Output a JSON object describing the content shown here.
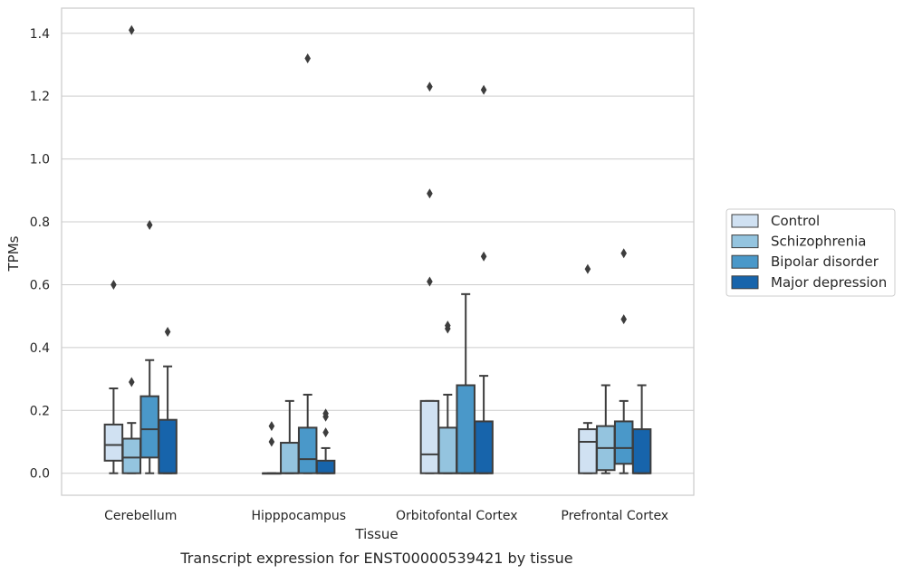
{
  "chart_data": {
    "type": "box",
    "caption": "Transcript expression for ENST00000539421 by tissue",
    "xlabel": "Tissue",
    "ylabel": "TPMs",
    "ylim": [
      -0.07,
      1.48
    ],
    "yticks": [
      0.0,
      0.2,
      0.4,
      0.6,
      0.8,
      1.0,
      1.2,
      1.4
    ],
    "ytick_labels": [
      "0.0",
      "0.2",
      "0.4",
      "0.6",
      "0.8",
      "1.0",
      "1.2",
      "1.4"
    ],
    "grid": "horizontal",
    "legend_position": "right",
    "categories": [
      "Cerebellum",
      "Hipppocampus",
      "Orbitofontal Cortex",
      "Prefrontal Cortex"
    ],
    "series": [
      {
        "name": "Control",
        "color": "#d0e1f2",
        "boxes": [
          {
            "low": 0.0,
            "q1": 0.04,
            "median": 0.09,
            "q3": 0.155,
            "high": 0.27,
            "outliers": [
              0.6
            ]
          },
          {
            "low": 0.0,
            "q1": 0.0,
            "median": 0.0,
            "q3": 0.0,
            "high": 0.0,
            "outliers": [
              0.1,
              0.15
            ]
          },
          {
            "low": 0.0,
            "q1": 0.0,
            "median": 0.06,
            "q3": 0.23,
            "high": 0.23,
            "outliers": [
              0.61,
              0.89,
              1.23
            ]
          },
          {
            "low": 0.0,
            "q1": 0.0,
            "median": 0.1,
            "q3": 0.14,
            "high": 0.16,
            "outliers": [
              0.65
            ]
          }
        ]
      },
      {
        "name": "Schizophrenia",
        "color": "#94c4df",
        "boxes": [
          {
            "low": 0.0,
            "q1": 0.0,
            "median": 0.05,
            "q3": 0.11,
            "high": 0.16,
            "outliers": [
              0.29,
              1.41
            ]
          },
          {
            "low": 0.0,
            "q1": 0.0,
            "median": 0.0,
            "q3": 0.097,
            "high": 0.23,
            "outliers": []
          },
          {
            "low": 0.0,
            "q1": 0.0,
            "median": 0.0,
            "q3": 0.145,
            "high": 0.25,
            "outliers": [
              0.46,
              0.47
            ]
          },
          {
            "low": 0.0,
            "q1": 0.01,
            "median": 0.08,
            "q3": 0.15,
            "high": 0.28,
            "outliers": []
          }
        ]
      },
      {
        "name": "Bipolar disorder",
        "color": "#4a98c9",
        "boxes": [
          {
            "low": 0.0,
            "q1": 0.05,
            "median": 0.14,
            "q3": 0.245,
            "high": 0.36,
            "outliers": [
              0.79
            ]
          },
          {
            "low": 0.0,
            "q1": 0.0,
            "median": 0.045,
            "q3": 0.145,
            "high": 0.25,
            "outliers": [
              1.32
            ]
          },
          {
            "low": 0.0,
            "q1": 0.0,
            "median": 0.0,
            "q3": 0.28,
            "high": 0.57,
            "outliers": []
          },
          {
            "low": 0.0,
            "q1": 0.03,
            "median": 0.08,
            "q3": 0.165,
            "high": 0.23,
            "outliers": [
              0.49,
              0.7
            ]
          }
        ]
      },
      {
        "name": "Major depression",
        "color": "#1764ab",
        "boxes": [
          {
            "low": 0.0,
            "q1": 0.0,
            "median": 0.0,
            "q3": 0.17,
            "high": 0.34,
            "outliers": [
              0.45
            ]
          },
          {
            "low": 0.0,
            "q1": 0.0,
            "median": 0.0,
            "q3": 0.04,
            "high": 0.08,
            "outliers": [
              0.13,
              0.18,
              0.19
            ]
          },
          {
            "low": 0.0,
            "q1": 0.0,
            "median": 0.0,
            "q3": 0.165,
            "high": 0.31,
            "outliers": [
              0.69,
              1.22
            ]
          },
          {
            "low": 0.0,
            "q1": 0.0,
            "median": 0.0,
            "q3": 0.14,
            "high": 0.28,
            "outliers": []
          }
        ]
      }
    ]
  }
}
